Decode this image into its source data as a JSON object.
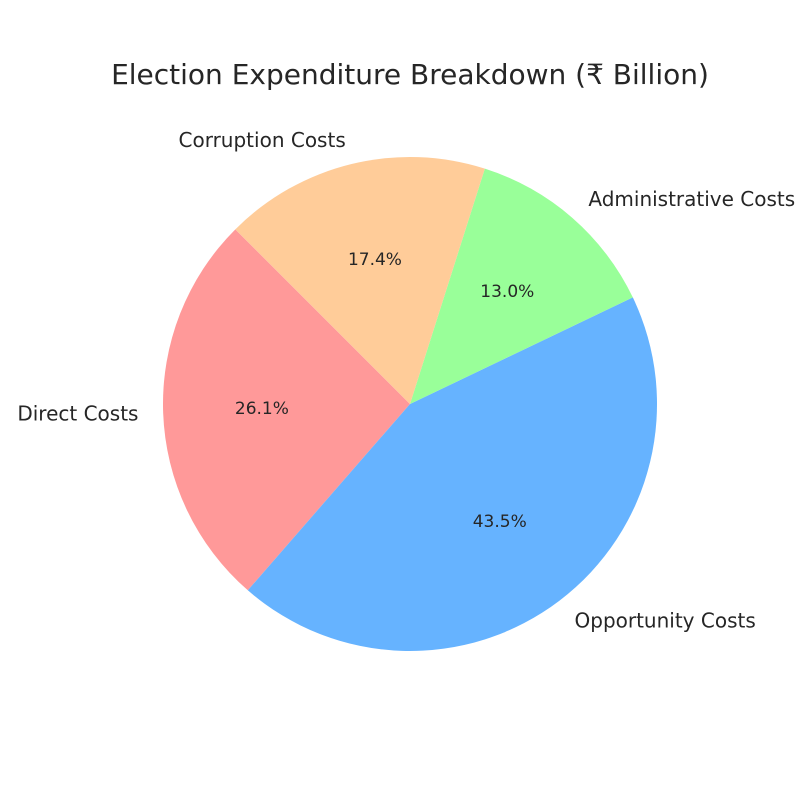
{
  "chart_data": {
    "type": "pie",
    "title": "Election Expenditure Breakdown (₹ Billion)",
    "start_angle_deg": 135,
    "direction": "counterclockwise",
    "slices": [
      {
        "label": "Direct Costs",
        "value": 26.1,
        "pct_label": "26.1%",
        "color": "#ff9999"
      },
      {
        "label": "Opportunity Costs",
        "value": 43.5,
        "pct_label": "43.5%",
        "color": "#66b3ff"
      },
      {
        "label": "Administrative Costs",
        "value": 13.0,
        "pct_label": "13.0%",
        "color": "#99ff99"
      },
      {
        "label": "Corruption Costs",
        "value": 17.4,
        "pct_label": "17.4%",
        "color": "#ffcc99"
      }
    ]
  }
}
